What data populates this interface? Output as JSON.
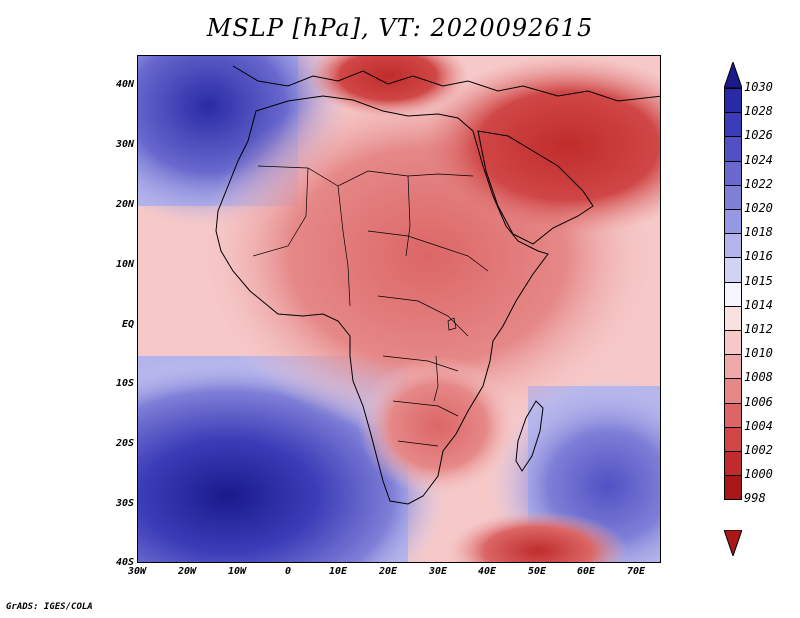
{
  "title": "MSLP [hPa], VT: 2020092615",
  "map": {
    "variable": "Mean sea level pressure",
    "units": "hPa",
    "valid_time": "2020092615",
    "region": "Africa"
  },
  "lat_ticks": [
    "40N",
    "30N",
    "20N",
    "10N",
    "EQ",
    "10S",
    "20S",
    "30S",
    "40S"
  ],
  "lon_ticks": [
    "30W",
    "20W",
    "10W",
    "0",
    "10E",
    "20E",
    "30E",
    "40E",
    "50E",
    "60E",
    "70E"
  ],
  "colorbar": {
    "levels": [
      "1030",
      "1028",
      "1026",
      "1024",
      "1022",
      "1020",
      "1018",
      "1016",
      "1015",
      "1014",
      "1012",
      "1010",
      "1008",
      "1006",
      "1004",
      "1002",
      "1000",
      "998"
    ],
    "colors": [
      "#1a1a8c",
      "#2a2aa6",
      "#3c3cb8",
      "#5151c4",
      "#6868ce",
      "#7f7fd8",
      "#9898e2",
      "#b4b4ec",
      "#d2d2f5",
      "#f5f5ff",
      "#fbe0e0",
      "#f6c8c8",
      "#eeaaaa",
      "#e68888",
      "#dc6666",
      "#d04646",
      "#c02c2c",
      "#a81818"
    ]
  },
  "footer": "GrADS: IGES/COLA"
}
